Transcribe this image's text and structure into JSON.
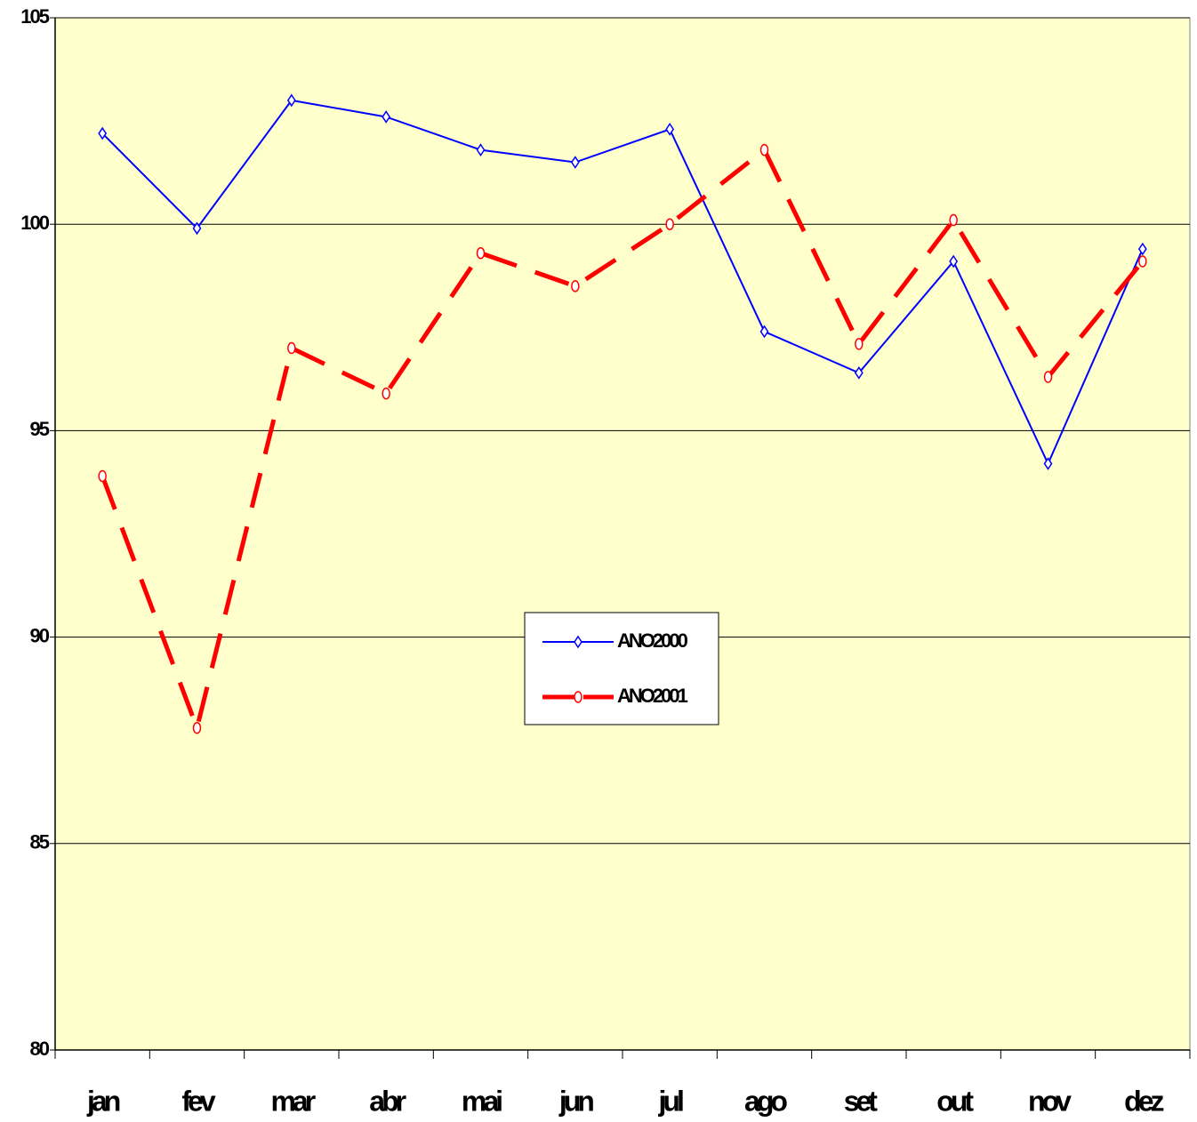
{
  "chart_data": {
    "type": "line",
    "categories": [
      "jan",
      "fev",
      "mar",
      "abr",
      "mai",
      "jun",
      "jul",
      "ago",
      "set",
      "out",
      "nov",
      "dez"
    ],
    "series": [
      {
        "name": "ANO2000",
        "color": "#0000ff",
        "values": [
          102.2,
          99.9,
          103.0,
          102.6,
          101.8,
          101.5,
          102.3,
          97.4,
          96.4,
          99.1,
          94.2,
          99.4
        ]
      },
      {
        "name": "ANO2001",
        "color": "#ff0000",
        "values": [
          93.9,
          87.8,
          97.0,
          95.9,
          99.3,
          98.5,
          100.0,
          101.8,
          97.1,
          100.1,
          96.3,
          99.1
        ]
      }
    ],
    "ylim": [
      80,
      105
    ],
    "yticks": [
      80,
      85,
      90,
      95,
      100,
      105
    ],
    "grid": true,
    "legend": "center"
  }
}
